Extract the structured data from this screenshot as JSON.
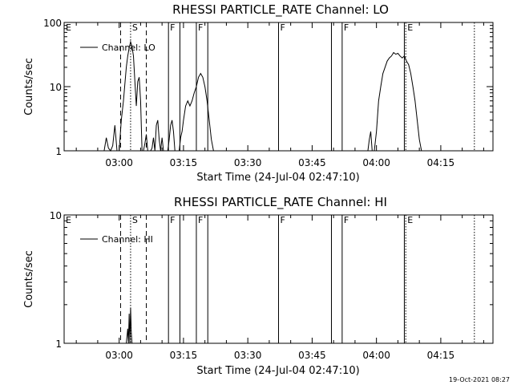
{
  "chart_data": [
    {
      "type": "line",
      "title": "RHESSI PARTICLE_RATE Channel: LO",
      "xlabel": "Start Time (24-Jul-04 02:47:10)",
      "ylabel": "Counts/sec",
      "yscale": "log",
      "ylim": [
        1,
        100
      ],
      "xlim": [
        "02:47:10",
        "04:27:10"
      ],
      "x_ticks": [
        "03:00",
        "03:15",
        "03:30",
        "03:45",
        "04:00",
        "04:15"
      ],
      "y_ticks": [
        "1",
        "10",
        "100"
      ],
      "legend": {
        "label": "Channel: LO",
        "placement": "top-left"
      },
      "grid": false,
      "event_markers": [
        {
          "time": "02:47:10",
          "label": "E",
          "style": "solid"
        },
        {
          "time": "03:00:20",
          "label": "",
          "style": "dashed"
        },
        {
          "time": "03:02:40",
          "label": "S",
          "style": "dotted"
        },
        {
          "time": "03:06:20",
          "label": "",
          "style": "dashed"
        },
        {
          "time": "03:11:30",
          "label": "F",
          "style": "solid"
        },
        {
          "time": "03:14:10",
          "label": "",
          "style": "solid"
        },
        {
          "time": "03:18:00",
          "label": "F",
          "style": "solid"
        },
        {
          "time": "03:20:40",
          "label": "",
          "style": "solid"
        },
        {
          "time": "03:37:10",
          "label": "F",
          "style": "solid"
        },
        {
          "time": "03:49:30",
          "label": "",
          "style": "solid"
        },
        {
          "time": "03:52:00",
          "label": "F",
          "style": "solid"
        },
        {
          "time": "04:06:50",
          "label": "E",
          "style": "dotted"
        },
        {
          "time": "04:06:30",
          "label": "",
          "style": "solid"
        },
        {
          "time": "04:22:50",
          "label": "",
          "style": "dotted"
        }
      ],
      "series": [
        {
          "name": "Channel: LO",
          "x": [
            "02:56:30",
            "02:57:00",
            "02:57:30",
            "02:58:00",
            "02:58:30",
            "02:59:00",
            "02:59:30",
            "03:00:00",
            "03:00:30",
            "03:01:00",
            "03:01:20",
            "03:01:40",
            "03:02:00",
            "03:02:20",
            "03:02:40",
            "03:03:00",
            "03:03:20",
            "03:03:40",
            "03:04:00",
            "03:04:20",
            "03:04:40",
            "03:05:00",
            "03:05:20",
            "03:05:40",
            "03:06:00",
            "03:06:20",
            "03:06:40",
            "03:07:00",
            "03:07:20",
            "03:07:40",
            "03:08:00",
            "03:08:20",
            "03:08:40",
            "03:09:00",
            "03:09:20",
            "03:09:40",
            "03:10:00",
            "03:10:20",
            "03:10:40",
            "03:11:00",
            "03:11:20",
            "03:11:40",
            "03:12:00",
            "03:12:20",
            "03:12:40",
            "03:13:00",
            "03:13:20",
            "03:13:40",
            "03:14:00",
            "03:14:20",
            "03:14:40",
            "03:15:00",
            "03:15:30",
            "03:16:00",
            "03:16:30",
            "03:17:00",
            "03:17:30",
            "03:18:00",
            "03:18:30",
            "03:19:00",
            "03:19:30",
            "03:20:00",
            "03:20:30",
            "03:21:00",
            "03:21:30",
            "03:22:00",
            "03:22:30",
            "03:58:00",
            "03:58:20",
            "03:58:40",
            "03:59:00",
            "03:59:30",
            "04:00:00",
            "04:00:30",
            "04:01:00",
            "04:01:30",
            "04:02:00",
            "04:02:30",
            "04:03:00",
            "04:03:30",
            "04:04:00",
            "04:04:30",
            "04:05:00",
            "04:05:30",
            "04:06:00",
            "04:06:30",
            "04:07:00",
            "04:07:30",
            "04:08:00",
            "04:08:30",
            "04:09:00",
            "04:09:30",
            "04:10:00",
            "04:10:30",
            "04:11:00",
            "04:11:30"
          ],
          "values": [
            1,
            1.6,
            1.1,
            1,
            1.2,
            2.5,
            1,
            1,
            3,
            6,
            11,
            20,
            30,
            40,
            50,
            42,
            30,
            12,
            5,
            12,
            14,
            6,
            1,
            1,
            1.3,
            1.8,
            1,
            1,
            1,
            1.1,
            1.6,
            1,
            2.5,
            3,
            1.5,
            1,
            1.6,
            1,
            1,
            1,
            1,
            1.5,
            2.5,
            3,
            2,
            1,
            1,
            1,
            1,
            1.6,
            2,
            3,
            5,
            6,
            5,
            6,
            8,
            10,
            14,
            16,
            14,
            10,
            6,
            3,
            1.5,
            1,
            1,
            1,
            1.5,
            2,
            1,
            1,
            2,
            6,
            10,
            16,
            20,
            25,
            28,
            30,
            34,
            32,
            33,
            30,
            28,
            30,
            25,
            22,
            16,
            10,
            6,
            3,
            1.5,
            1,
            1,
            1
          ]
        }
      ]
    },
    {
      "type": "line",
      "title": "RHESSI PARTICLE_RATE Channel: HI",
      "xlabel": "Start Time (24-Jul-04 02:47:10)",
      "ylabel": "Counts/sec",
      "yscale": "log",
      "ylim": [
        1,
        10
      ],
      "xlim": [
        "02:47:10",
        "04:27:10"
      ],
      "x_ticks": [
        "03:00",
        "03:15",
        "03:30",
        "03:45",
        "04:00",
        "04:15"
      ],
      "y_ticks": [
        "1",
        "10"
      ],
      "legend": {
        "label": "Channel: HI",
        "placement": "top-left"
      },
      "grid": false,
      "event_markers": [
        {
          "time": "02:47:10",
          "label": "E",
          "style": "solid"
        },
        {
          "time": "03:00:20",
          "label": "",
          "style": "dashed"
        },
        {
          "time": "03:02:40",
          "label": "S",
          "style": "dotted"
        },
        {
          "time": "03:06:20",
          "label": "",
          "style": "dashed"
        },
        {
          "time": "03:11:30",
          "label": "F",
          "style": "solid"
        },
        {
          "time": "03:14:10",
          "label": "",
          "style": "solid"
        },
        {
          "time": "03:18:00",
          "label": "F",
          "style": "solid"
        },
        {
          "time": "03:20:40",
          "label": "",
          "style": "solid"
        },
        {
          "time": "03:37:10",
          "label": "F",
          "style": "solid"
        },
        {
          "time": "03:49:30",
          "label": "",
          "style": "solid"
        },
        {
          "time": "03:52:00",
          "label": "F",
          "style": "solid"
        },
        {
          "time": "04:06:50",
          "label": "E",
          "style": "dotted"
        },
        {
          "time": "04:06:30",
          "label": "",
          "style": "solid"
        },
        {
          "time": "04:22:50",
          "label": "",
          "style": "dotted"
        }
      ],
      "series": [
        {
          "name": "Channel: HI",
          "x": [
            "03:01:40",
            "03:02:00",
            "03:02:10",
            "03:02:20",
            "03:02:30",
            "03:02:40",
            "03:02:50",
            "03:03:00"
          ],
          "values": [
            1,
            1.3,
            1,
            1.7,
            1,
            1.9,
            1.2,
            1
          ]
        }
      ]
    }
  ],
  "footer": {
    "date_stamp": "19-Oct-2021 08:27"
  }
}
